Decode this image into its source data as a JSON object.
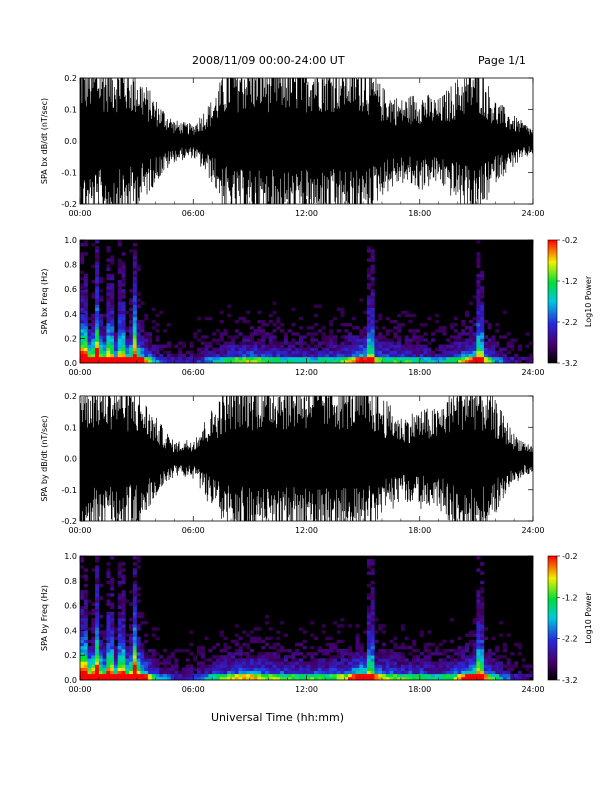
{
  "header": {
    "date_range": "2008/11/09  00:00-24:00 UT",
    "page": "Page 1/1"
  },
  "x_axis_title": "Universal Time (hh:mm)",
  "colorbar_label": "Log10 Power",
  "chart_data": [
    {
      "type": "line",
      "panel": "time-series",
      "ylabel": "SPA bx dB/dt (nT/sec)",
      "xlim_hours": [
        0,
        24
      ],
      "x_ticks": [
        "00:00",
        "06:00",
        "12:00",
        "18:00",
        "24:00"
      ],
      "ylim": [
        -0.2,
        0.2
      ],
      "y_ticks": [
        "-0.2",
        "-0.1",
        "0.0",
        "0.1",
        "0.2"
      ],
      "envelope": {
        "time_hours": [
          0,
          1,
          2,
          3,
          4,
          5,
          6,
          7,
          8,
          9,
          10,
          11,
          12,
          13,
          14,
          15,
          16,
          17,
          18,
          19,
          20,
          21,
          22,
          23,
          24
        ],
        "amplitude": [
          0.2,
          0.2,
          0.2,
          0.17,
          0.1,
          0.05,
          0.04,
          0.1,
          0.2,
          0.2,
          0.2,
          0.2,
          0.2,
          0.2,
          0.2,
          0.2,
          0.13,
          0.1,
          0.12,
          0.1,
          0.15,
          0.2,
          0.1,
          0.06,
          0.03
        ]
      }
    },
    {
      "type": "heatmap",
      "panel": "spectrogram",
      "ylabel": "SPA bx Freq (Hz)",
      "xlim_hours": [
        0,
        24
      ],
      "x_ticks": [
        "00:00",
        "06:00",
        "12:00",
        "18:00",
        "24:00"
      ],
      "ylim": [
        0,
        1.0
      ],
      "y_ticks": [
        "0.0",
        "0.2",
        "0.4",
        "0.6",
        "0.8",
        "1.0"
      ],
      "colorbar": {
        "label": "Log10 Power",
        "range": [
          -3.2,
          -0.2
        ],
        "ticks": [
          "-0.2",
          "-1.2",
          "-2.2",
          "-3.2"
        ]
      },
      "activity_profile": [
        0.75,
        0.65,
        0.45,
        0.6,
        0.2,
        0.1,
        0.1,
        0.2,
        0.3,
        0.35,
        0.3,
        0.25,
        0.25,
        0.25,
        0.3,
        0.5,
        0.3,
        0.3,
        0.25,
        0.2,
        0.3,
        0.55,
        0.2,
        0.1,
        0.05
      ],
      "bursts_hours": [
        0.2,
        0.9,
        1.6,
        2.2,
        2.9,
        15.4,
        21.2
      ]
    },
    {
      "type": "line",
      "panel": "time-series",
      "ylabel": "SPA by dB/dt (nT/sec)",
      "xlim_hours": [
        0,
        24
      ],
      "x_ticks": [
        "00:00",
        "06:00",
        "12:00",
        "18:00",
        "24:00"
      ],
      "ylim": [
        -0.2,
        0.2
      ],
      "y_ticks": [
        "-0.2",
        "-0.1",
        "0.0",
        "0.1",
        "0.2"
      ],
      "envelope": {
        "time_hours": [
          0,
          1,
          2,
          3,
          4,
          5,
          6,
          7,
          8,
          9,
          10,
          11,
          12,
          13,
          14,
          15,
          16,
          17,
          18,
          19,
          20,
          21,
          22,
          23,
          24
        ],
        "amplitude": [
          0.2,
          0.2,
          0.2,
          0.17,
          0.1,
          0.04,
          0.05,
          0.12,
          0.2,
          0.2,
          0.2,
          0.2,
          0.2,
          0.2,
          0.2,
          0.2,
          0.15,
          0.1,
          0.12,
          0.12,
          0.2,
          0.2,
          0.14,
          0.06,
          0.03
        ]
      }
    },
    {
      "type": "heatmap",
      "panel": "spectrogram",
      "ylabel": "SPA by Freq (Hz)",
      "xlim_hours": [
        0,
        24
      ],
      "x_ticks": [
        "00:00",
        "06:00",
        "12:00",
        "18:00",
        "24:00"
      ],
      "ylim": [
        0,
        1.0
      ],
      "y_ticks": [
        "0.0",
        "0.2",
        "0.4",
        "0.6",
        "0.8",
        "1.0"
      ],
      "colorbar": {
        "label": "Log10 Power",
        "range": [
          -3.2,
          -0.2
        ],
        "ticks": [
          "-0.2",
          "-1.2",
          "-2.2",
          "-3.2"
        ]
      },
      "activity_profile": [
        0.8,
        0.7,
        0.55,
        0.7,
        0.25,
        0.12,
        0.12,
        0.25,
        0.35,
        0.4,
        0.35,
        0.3,
        0.3,
        0.3,
        0.35,
        0.55,
        0.35,
        0.3,
        0.3,
        0.25,
        0.35,
        0.6,
        0.25,
        0.12,
        0.06
      ],
      "bursts_hours": [
        0.2,
        0.9,
        1.6,
        2.2,
        2.9,
        15.4,
        21.2
      ]
    }
  ]
}
